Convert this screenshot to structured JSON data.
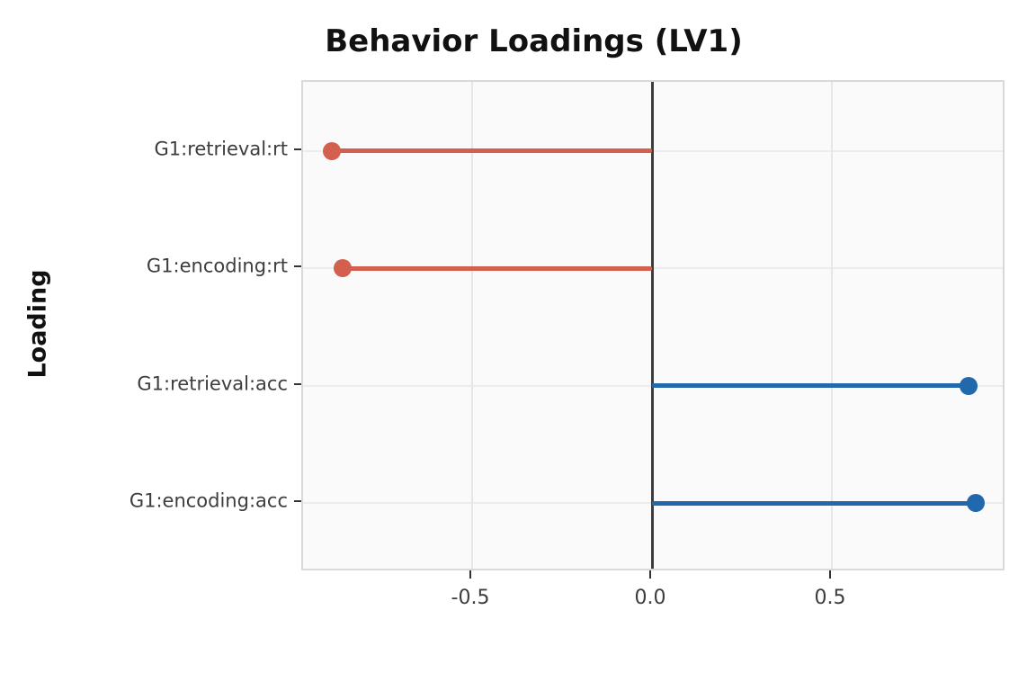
{
  "title": "Behavior Loadings (LV1)",
  "ylabel": "Loading",
  "chart_data": {
    "type": "bar",
    "style": "lollipop",
    "orientation": "horizontal",
    "title": "Behavior Loadings (LV1)",
    "xlabel": "",
    "ylabel": "Loading",
    "categories": [
      "G1:retrieval:rt",
      "G1:encoding:rt",
      "G1:retrieval:acc",
      "G1:encoding:acc"
    ],
    "values": [
      -0.89,
      -0.86,
      0.88,
      0.9
    ],
    "xlim": [
      -0.97,
      0.985
    ],
    "x_ticks": [
      -0.5,
      0.0,
      0.5
    ],
    "x_tick_labels": [
      "-0.5",
      "0.0",
      "0.5"
    ],
    "grid": true,
    "legend": "none",
    "colors": {
      "positive": "#2268ad",
      "negative": "#d3604f",
      "zero_line": "#3d3d3d",
      "grid": "#ececec",
      "panel_background": "#fafafa",
      "tick": "#333333",
      "text": "#3d3d3d",
      "title_text": "#111111"
    }
  }
}
